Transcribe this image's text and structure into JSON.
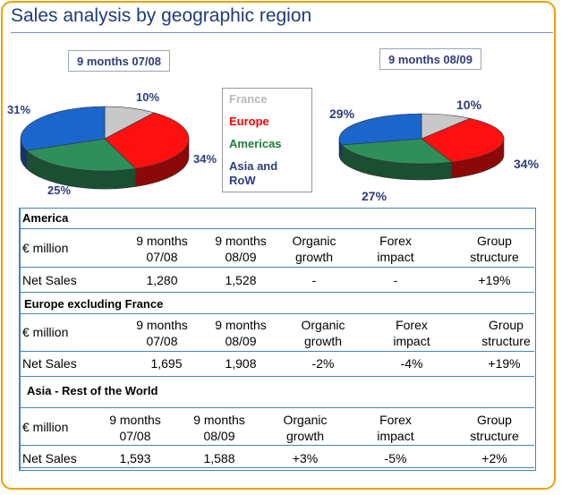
{
  "title": "Sales analysis by geographic region",
  "chart_data": [
    {
      "type": "pie",
      "title": "9 months 07/08",
      "categories": [
        "France",
        "Europe",
        "Americas",
        "Asia and RoW"
      ],
      "values": [
        10,
        34,
        25,
        31
      ],
      "labels": [
        "10%",
        "34%",
        "25%",
        "31%"
      ],
      "colors": [
        "#c8c8c8",
        "#ff1010",
        "#2f8f5a",
        "#1a66cc"
      ]
    },
    {
      "type": "pie",
      "title": "9 months 08/09",
      "categories": [
        "France",
        "Europe",
        "Americas",
        "Asia and RoW"
      ],
      "values": [
        10,
        34,
        27,
        29
      ],
      "labels": [
        "10%",
        "34%",
        "27%",
        "29%"
      ],
      "colors": [
        "#c8c8c8",
        "#ff1010",
        "#2f8f5a",
        "#1a66cc"
      ]
    },
    {
      "type": "table",
      "sections": [
        {
          "title": "America",
          "header": [
            "€ million",
            "9 months 07/08",
            "9 months 08/09",
            "Organic growth",
            "Forex impact",
            "Group structure"
          ],
          "row": [
            "Net Sales",
            "1,280",
            "1,528",
            "-",
            "-",
            "+19%"
          ]
        },
        {
          "title": "Europe excluding France",
          "header": [
            "€ million",
            "9 months 07/08",
            "9 months 08/09",
            "Organic growth",
            "Forex impact",
            "Group structure"
          ],
          "row": [
            "Net Sales",
            "1,695",
            "1,908",
            "-2%",
            "-4%",
            "+19%"
          ]
        },
        {
          "title": "Asia - Rest of the World",
          "header": [
            "€ million",
            "9 months 07/08",
            "9 months 08/09",
            "Organic growth",
            "Forex impact",
            "Group structure"
          ],
          "row": [
            "Net Sales",
            "1,593",
            "1,588",
            "+3%",
            "-5%",
            "+2%"
          ]
        }
      ]
    }
  ],
  "legend": [
    {
      "label": "France",
      "color": "#b8b8b8"
    },
    {
      "label": "Europe",
      "color": "#ff0000"
    },
    {
      "label": "Americas",
      "color": "#1e7a3c"
    },
    {
      "label": "Asia and RoW",
      "color": "#2e3c7a"
    }
  ]
}
